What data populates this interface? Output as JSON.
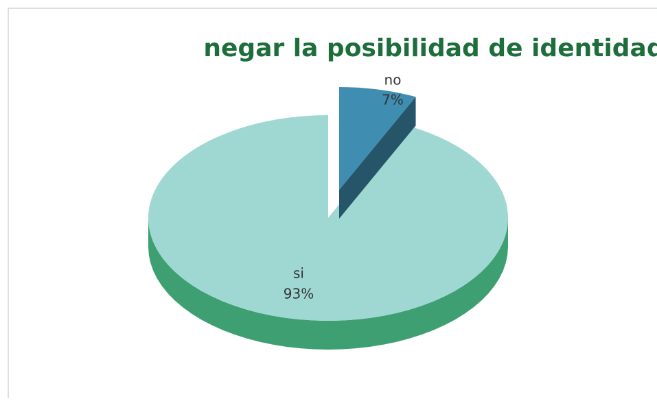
{
  "chart_data": {
    "type": "pie",
    "title": "negar la posibilidad de identidad",
    "categories": [
      "si",
      "no"
    ],
    "values": [
      93,
      7
    ],
    "value_labels": [
      "93%",
      "7%"
    ],
    "colors": [
      "#9fd8d3",
      "#3f8db0"
    ]
  }
}
